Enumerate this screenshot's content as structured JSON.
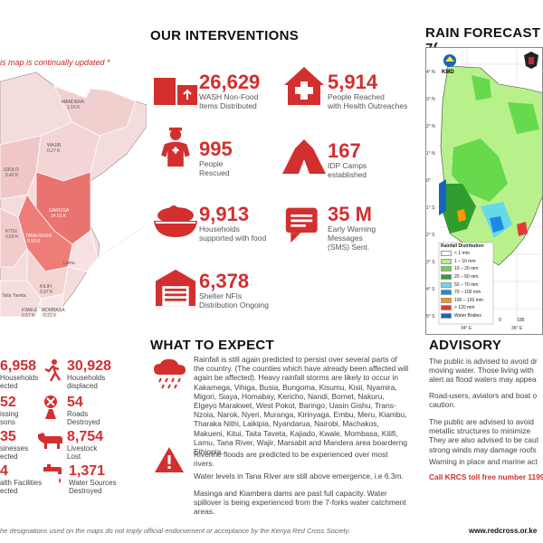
{
  "map_note": "is map is continually updated *",
  "map_labels": {
    "mandera": "MANDERA",
    "mandera_val": "1.16 K",
    "wajir": "WAJIR",
    "wajir_val": "0.27 K",
    "isiolo": "ISIOLO",
    "isiolo_val": "0.42 K",
    "garissa": "GARISSA",
    "garissa_val": "14.91 K",
    "kitui": "KITUI",
    "kitui_val": "0.69 K",
    "tana_river": "TANA RIVER",
    "tana_river_val": "9.93 K",
    "lamu": "Lamu",
    "kilifi": "KILIFI",
    "kilifi_val": "0.97 K",
    "mombasa": "MOMBASA",
    "mombasa_val": "0.22 K",
    "kwale": "KWALE",
    "kwale_val": "0.57 K",
    "taita": "Taita Taveta"
  },
  "interventions": {
    "title": "OUR INTERVENTIONS",
    "items": [
      {
        "value": "26,629",
        "label1": "WASH Non-Food",
        "label2": "Items Distributed"
      },
      {
        "value": "5,914",
        "label1": "People Reached",
        "label2": "with Health Outreaches"
      },
      {
        "value": "995",
        "label1": "People",
        "label2": "Rescued"
      },
      {
        "value": "167",
        "label1": "IDP Camps",
        "label2": "established"
      },
      {
        "value": "9,913",
        "label1": "Households",
        "label2": "supported with food"
      },
      {
        "value": "35 M",
        "label1": "Early Warning",
        "label2": "Messages",
        "label3": "(SMS) Sent."
      },
      {
        "value": "6,378",
        "label1": "Shelter NFIs",
        "label2": "Distribution Ongoing"
      }
    ]
  },
  "rain": {
    "title": "RAIN FORECAST 7(",
    "kmd": "KMD",
    "lat_labels": [
      "4° N",
      "3° N",
      "2° N",
      "1° N",
      "0°",
      "1° S",
      "2° S",
      "3° S",
      "4° S",
      "5° S"
    ],
    "lon_labels": [
      "34° E",
      "36° E"
    ],
    "legend_title": "Rainfall Distribution",
    "legend": [
      {
        "label": "< 1 mm",
        "color": "#ffffff"
      },
      {
        "label": "1 – 10 mm",
        "color": "#b8f08c"
      },
      {
        "label": "10 – 20 mm",
        "color": "#66d94d"
      },
      {
        "label": "20 – 50 mm",
        "color": "#2f9e2f"
      },
      {
        "label": "50 – 70 mm",
        "color": "#66d9e8"
      },
      {
        "label": "70 – 100 mm",
        "color": "#1e88e5"
      },
      {
        "label": "100 – 120 mm",
        "color": "#ff9800"
      },
      {
        "label": "> 120 mm",
        "color": "#e53935"
      },
      {
        "label": "Water Bodies",
        "color": "#1565c0"
      }
    ],
    "scale": [
      "0",
      "185"
    ]
  },
  "left_stats": [
    {
      "value": "6,958",
      "label1": "Households",
      "label2": "ected"
    },
    {
      "value": "30,928",
      "label1": "Households",
      "label2": "displaced"
    },
    {
      "value": "52",
      "label1": "issing",
      "label2": "sons"
    },
    {
      "value": "54",
      "label1": "Roads",
      "label2": "Destroyed"
    },
    {
      "value": "35",
      "label1": "sinesses",
      "label2": "ected"
    },
    {
      "value": "8,754",
      "label1": "Livestock",
      "label2": "Lost"
    },
    {
      "value": "4",
      "label1": "alth Facilities",
      "label2": "ected"
    },
    {
      "value": "1,371",
      "label1": "Water Sources",
      "label2": "Destroyed"
    }
  ],
  "expect": {
    "title": "WHAT TO EXPECT",
    "p1": "Rainfall is still again predicted to persist over several parts of the country.  (The counties which have already been affected will again be affected). Heavy rainfall storms are likely to occur in Kakamega, Vihiga, Busia, Bungoma, Kisumu, Kisii, Nyamira, Migori, Siaya, Homabay, Kericho, Nandi, Bomet, Nakuru, Elgeyo Marakwet, West Pokot, Baringo, Uasin Gishu, Trans-Nzoia, Narok, Nyeri, Muranga, Kirinyaga, Embu, Meru, Kiambu, Tharaka Nithi, Laikipia, Nyandarua, Nairobi, Machakos, Makueni, Kitui, Taita Taveta, Kajiado, Kwale, Mombasa, Kilifi, Lamu, Tana River, Wajir, Marsabit and Mandera area boarderng Ethiopia.",
    "p2": "Riverine floods are predicted to be experienced over most rivers.",
    "p3": "Water levels in Tana River are still above emergence, i.e 6.3m.",
    "p4": "Masinga and Kiambera dams are past full capacity. Water spillover is being experienced from the 7-forks water catchment areas."
  },
  "advisory": {
    "title": "ADVISORY",
    "p1": "The public is advised to avoid dr moving water. Those living with alert as flood waters may appea",
    "p2": "Road-users, aviators and boat o caution.",
    "p3": "The public are advised to avoid metallic structures to minimize They are also advised to be caut strong winds may damage roofs",
    "p4": "Warning in place and marine act",
    "hotline": "Call KRCS toll free number 1199"
  },
  "footer": {
    "disclaimer": "he designations used on the maps do not imply official endorsement or acceptance by the Kenya Red Cross Society.",
    "url": "www.redcross.or.ke"
  },
  "colors": {
    "accent": "#d32f2f"
  }
}
